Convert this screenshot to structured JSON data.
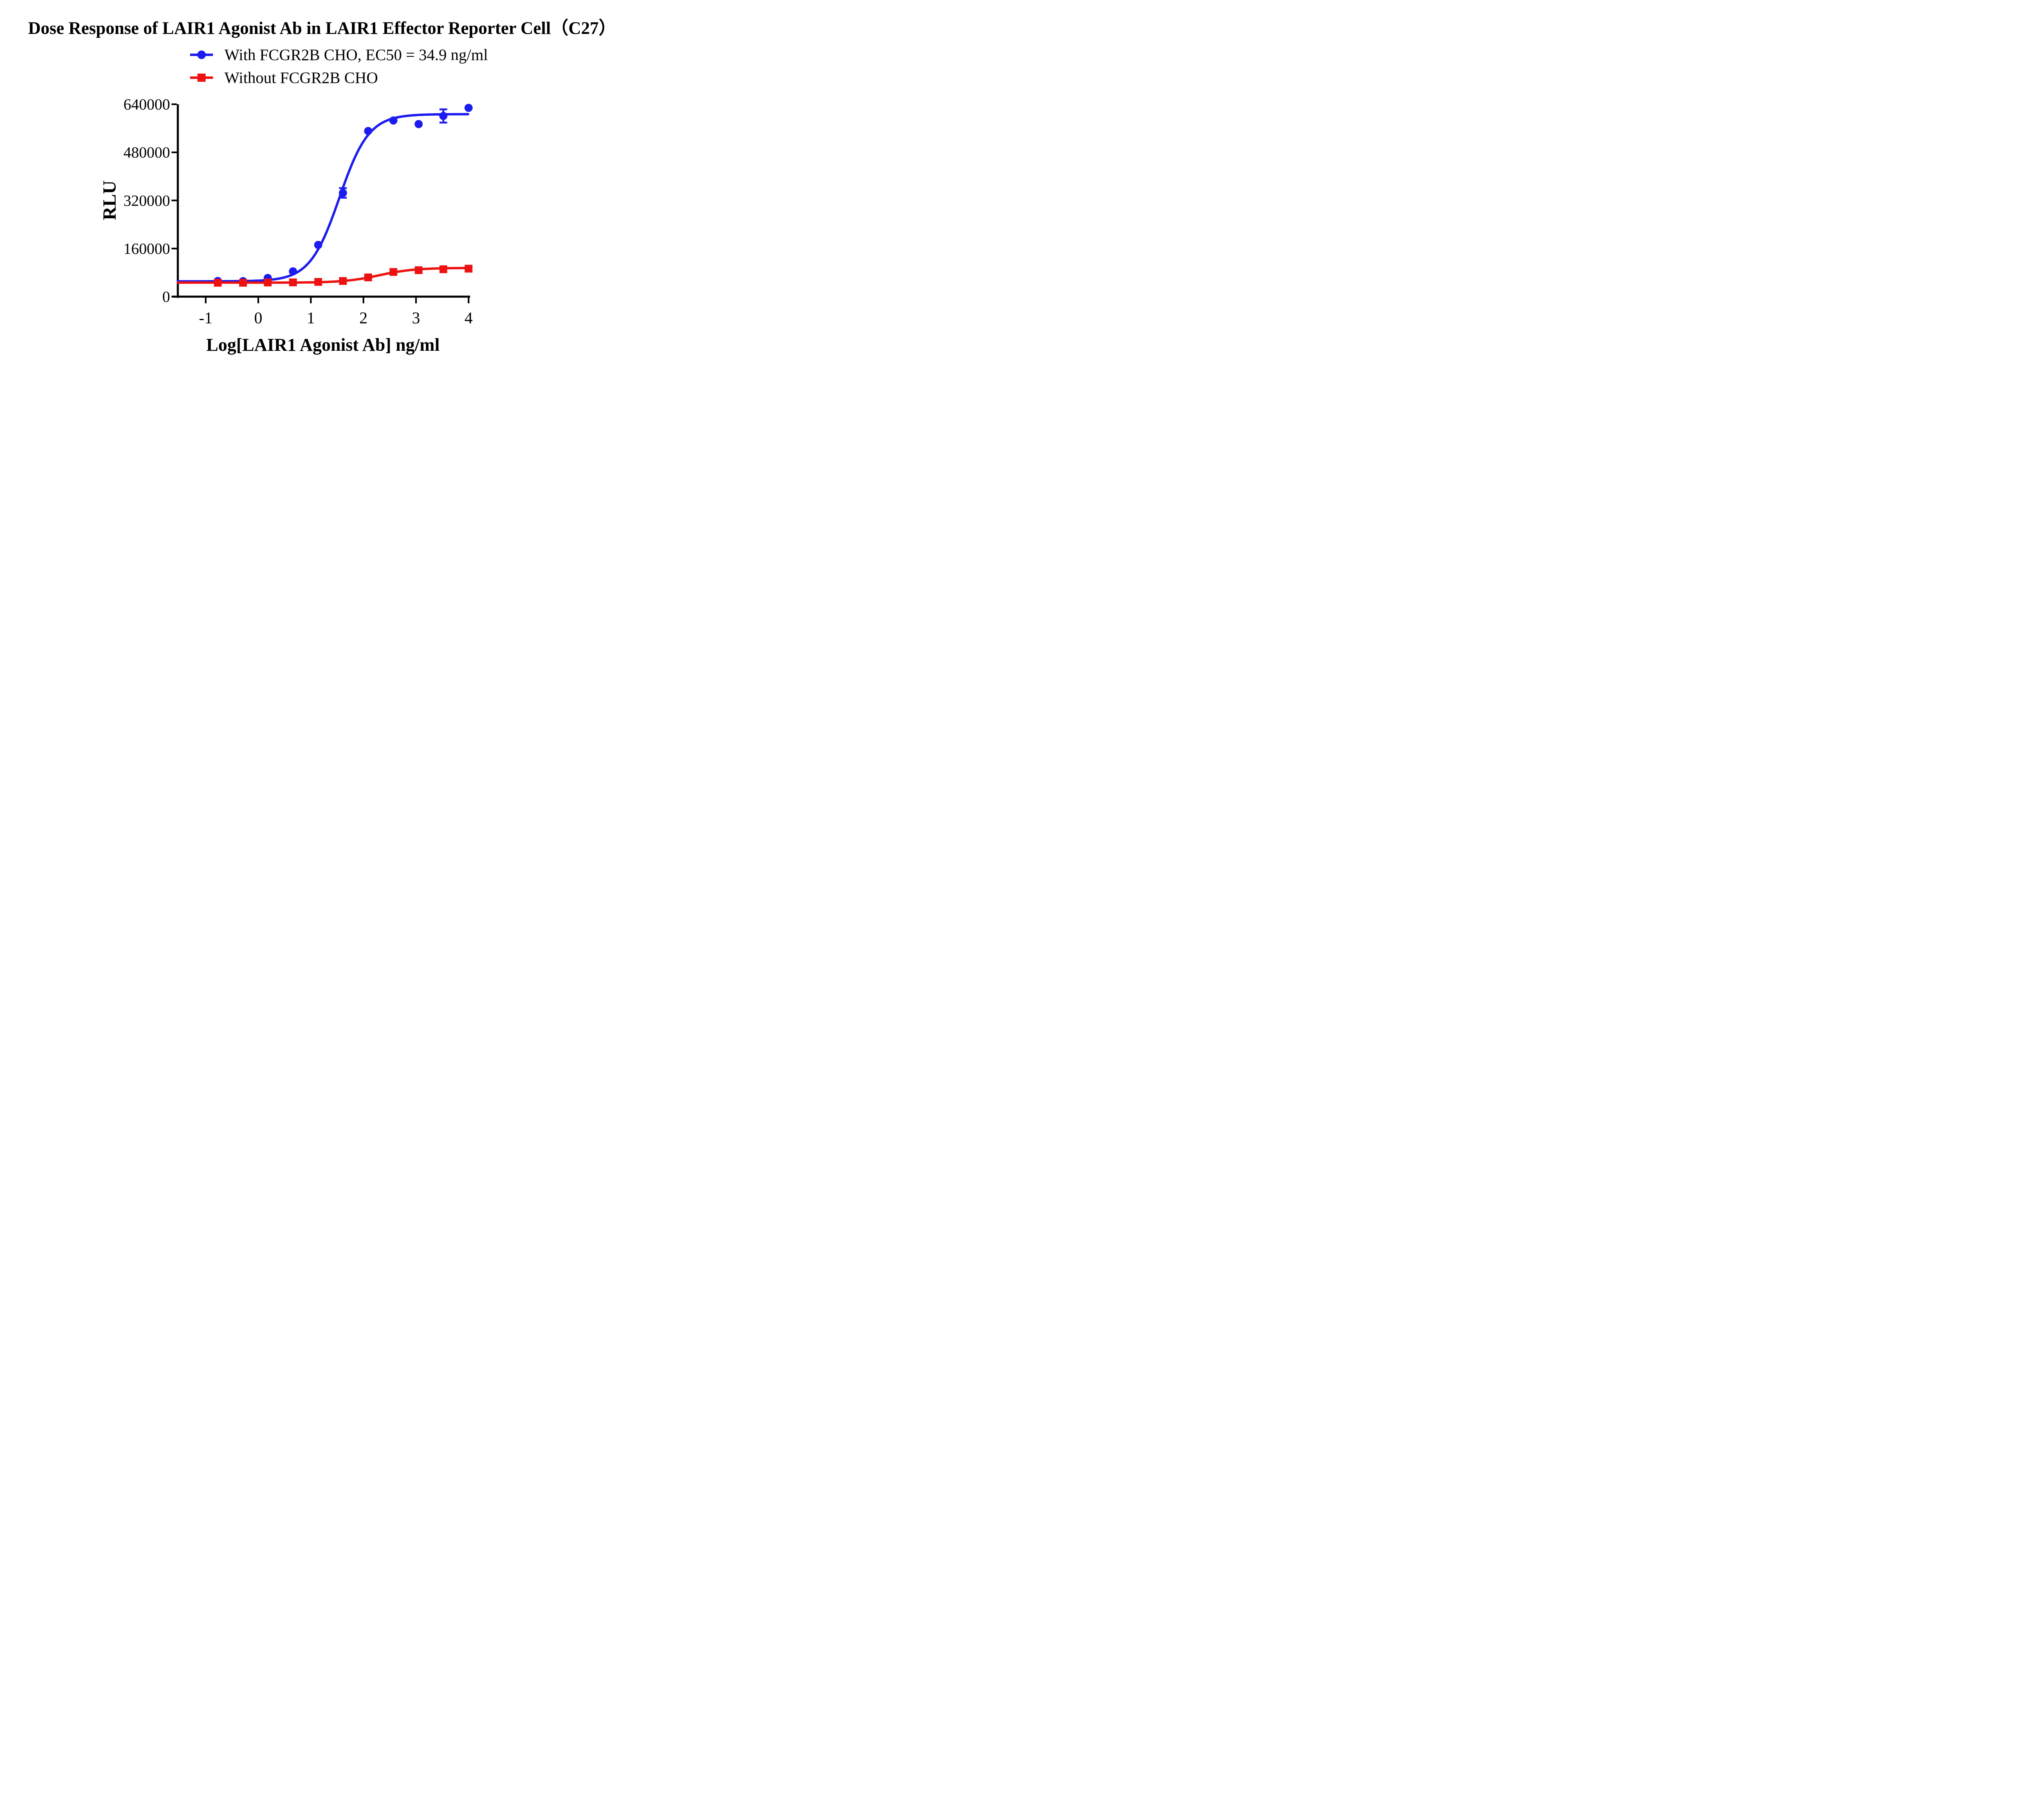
{
  "chart_data": {
    "type": "line",
    "title": "Dose Response of LAIR1 Agonist Ab in LAIR1 Effector Reporter Cell（C27）",
    "xlabel": "Log[LAIR1 Agonist Ab] ng/ml",
    "ylabel": "RLU",
    "xlim": [
      -1.53,
      4.0
    ],
    "ylim": [
      0,
      640000
    ],
    "xticks": [
      "-1",
      "0",
      "1",
      "2",
      "3",
      "4"
    ],
    "xtick_values": [
      -1,
      0,
      1,
      2,
      3,
      4
    ],
    "yticks": [
      "0",
      "160000",
      "320000",
      "480000",
      "640000"
    ],
    "ytick_values": [
      0,
      160000,
      320000,
      480000,
      640000
    ],
    "grid": false,
    "legend_position": "top-center",
    "axis_color": "#000000",
    "background_color": "#ffffff",
    "series": [
      {
        "name": "With FCGR2B CHO, EC50 = 34.9 ng/ml",
        "ec50_text": "EC50 = 34.9 ng/ml",
        "color": "#1c1cf0",
        "marker": "circle",
        "x": [
          -0.77,
          -0.29,
          0.18,
          0.66,
          1.14,
          1.61,
          2.09,
          2.57,
          3.05,
          3.52,
          4.0
        ],
        "y": [
          52000,
          51500,
          62000,
          84000,
          172000,
          345000,
          551000,
          586000,
          574000,
          601000,
          628000
        ],
        "yerr": [
          0,
          0,
          0,
          0,
          0,
          16000,
          0,
          0,
          0,
          22000,
          0
        ],
        "fit": {
          "bottom": 51000,
          "top": 607000,
          "logec50": 1.543,
          "hill": 1.55
        }
      },
      {
        "name": "Without FCGR2B CHO",
        "color": "#ee1111",
        "marker": "square",
        "x": [
          -0.77,
          -0.29,
          0.18,
          0.66,
          1.14,
          1.61,
          2.09,
          2.57,
          3.05,
          3.52,
          4.0
        ],
        "y": [
          46000,
          46000,
          47000,
          47500,
          49000,
          52000,
          64000,
          82000,
          88000,
          91000,
          93000
        ],
        "fit": {
          "bottom": 46500,
          "top": 95500,
          "logec50": 2.3,
          "hill": 1.3
        }
      }
    ]
  }
}
